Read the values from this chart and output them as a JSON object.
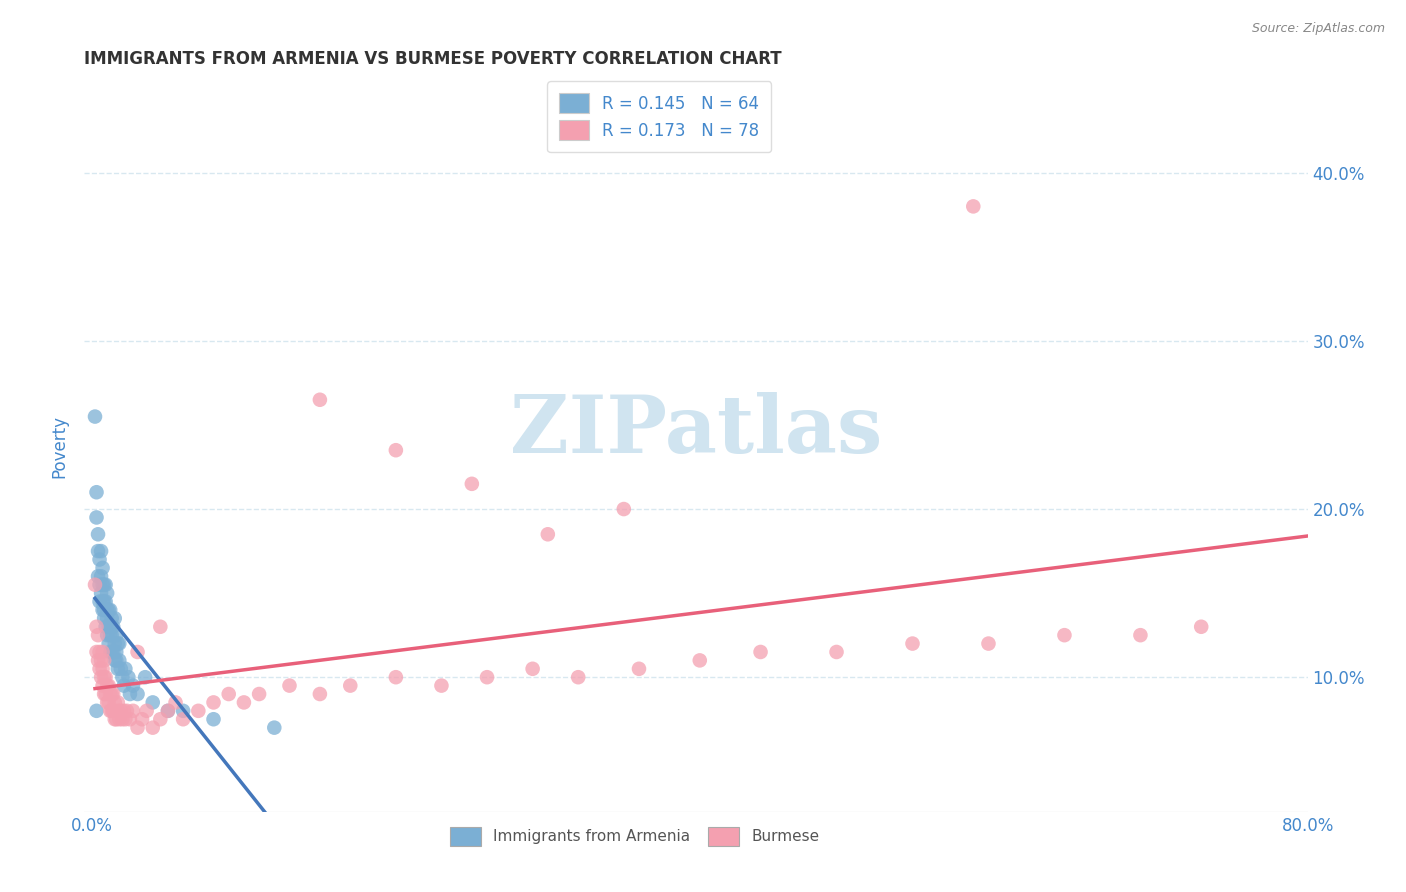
{
  "title": "IMMIGRANTS FROM ARMENIA VS BURMESE POVERTY CORRELATION CHART",
  "source": "Source: ZipAtlas.com",
  "ylabel": "Poverty",
  "y_tick_labels": [
    "10.0%",
    "20.0%",
    "30.0%",
    "40.0%"
  ],
  "y_tick_values": [
    0.1,
    0.2,
    0.3,
    0.4
  ],
  "xlim": [
    -0.005,
    0.8
  ],
  "ylim": [
    0.02,
    0.455
  ],
  "legend_r1": "R = 0.145",
  "legend_n1": "N = 64",
  "legend_r2": "R = 0.173",
  "legend_n2": "N = 78",
  "label1": "Immigrants from Armenia",
  "label2": "Burmese",
  "color1": "#7BAFD4",
  "color2": "#F4A0B0",
  "trendline1_color": "#4477BB",
  "trendline2_color": "#E8607A",
  "dash_color": "#AAAAAA",
  "watermark": "ZIPatlas",
  "watermark_color": "#D0E4F0",
  "background_color": "#FFFFFF",
  "title_color": "#333333",
  "axis_label_color": "#4488CC",
  "gridline_color": "#D8E8F0",
  "armenia_x": [
    0.002,
    0.003,
    0.003,
    0.004,
    0.004,
    0.004,
    0.005,
    0.005,
    0.005,
    0.006,
    0.006,
    0.006,
    0.007,
    0.007,
    0.007,
    0.007,
    0.008,
    0.008,
    0.008,
    0.008,
    0.009,
    0.009,
    0.009,
    0.01,
    0.01,
    0.01,
    0.01,
    0.011,
    0.011,
    0.011,
    0.012,
    0.012,
    0.012,
    0.012,
    0.013,
    0.013,
    0.013,
    0.014,
    0.014,
    0.015,
    0.015,
    0.015,
    0.016,
    0.016,
    0.016,
    0.017,
    0.017,
    0.018,
    0.018,
    0.019,
    0.02,
    0.021,
    0.022,
    0.024,
    0.025,
    0.027,
    0.03,
    0.035,
    0.04,
    0.05,
    0.06,
    0.08,
    0.12,
    0.003
  ],
  "armenia_y": [
    0.255,
    0.195,
    0.21,
    0.175,
    0.16,
    0.185,
    0.155,
    0.17,
    0.145,
    0.16,
    0.15,
    0.175,
    0.145,
    0.155,
    0.14,
    0.165,
    0.135,
    0.145,
    0.155,
    0.14,
    0.13,
    0.145,
    0.155,
    0.125,
    0.14,
    0.15,
    0.135,
    0.12,
    0.14,
    0.13,
    0.115,
    0.125,
    0.14,
    0.13,
    0.115,
    0.125,
    0.135,
    0.115,
    0.13,
    0.11,
    0.12,
    0.135,
    0.11,
    0.125,
    0.115,
    0.105,
    0.12,
    0.11,
    0.12,
    0.105,
    0.1,
    0.095,
    0.105,
    0.1,
    0.09,
    0.095,
    0.09,
    0.1,
    0.085,
    0.08,
    0.08,
    0.075,
    0.07,
    0.08
  ],
  "burmese_x": [
    0.002,
    0.003,
    0.003,
    0.004,
    0.004,
    0.005,
    0.005,
    0.006,
    0.006,
    0.007,
    0.007,
    0.007,
    0.008,
    0.008,
    0.008,
    0.009,
    0.009,
    0.01,
    0.01,
    0.011,
    0.011,
    0.012,
    0.012,
    0.013,
    0.013,
    0.014,
    0.014,
    0.015,
    0.015,
    0.016,
    0.017,
    0.017,
    0.018,
    0.019,
    0.02,
    0.021,
    0.022,
    0.023,
    0.025,
    0.027,
    0.03,
    0.033,
    0.036,
    0.04,
    0.045,
    0.05,
    0.055,
    0.06,
    0.07,
    0.08,
    0.09,
    0.1,
    0.11,
    0.13,
    0.15,
    0.17,
    0.2,
    0.23,
    0.26,
    0.29,
    0.32,
    0.36,
    0.4,
    0.44,
    0.49,
    0.54,
    0.59,
    0.64,
    0.69,
    0.73,
    0.15,
    0.2,
    0.25,
    0.3,
    0.35,
    0.045,
    0.03,
    0.58
  ],
  "burmese_y": [
    0.155,
    0.13,
    0.115,
    0.11,
    0.125,
    0.105,
    0.115,
    0.1,
    0.11,
    0.095,
    0.105,
    0.115,
    0.09,
    0.1,
    0.11,
    0.09,
    0.1,
    0.085,
    0.095,
    0.085,
    0.095,
    0.08,
    0.09,
    0.08,
    0.09,
    0.08,
    0.09,
    0.075,
    0.085,
    0.075,
    0.08,
    0.085,
    0.075,
    0.08,
    0.075,
    0.08,
    0.075,
    0.08,
    0.075,
    0.08,
    0.07,
    0.075,
    0.08,
    0.07,
    0.075,
    0.08,
    0.085,
    0.075,
    0.08,
    0.085,
    0.09,
    0.085,
    0.09,
    0.095,
    0.09,
    0.095,
    0.1,
    0.095,
    0.1,
    0.105,
    0.1,
    0.105,
    0.11,
    0.115,
    0.115,
    0.12,
    0.12,
    0.125,
    0.125,
    0.13,
    0.265,
    0.235,
    0.215,
    0.185,
    0.2,
    0.13,
    0.115,
    0.38
  ],
  "armenia_trendline_x_end": 0.14,
  "burmese_trendline_start_y": 0.095,
  "burmese_trendline_end_y": 0.17
}
